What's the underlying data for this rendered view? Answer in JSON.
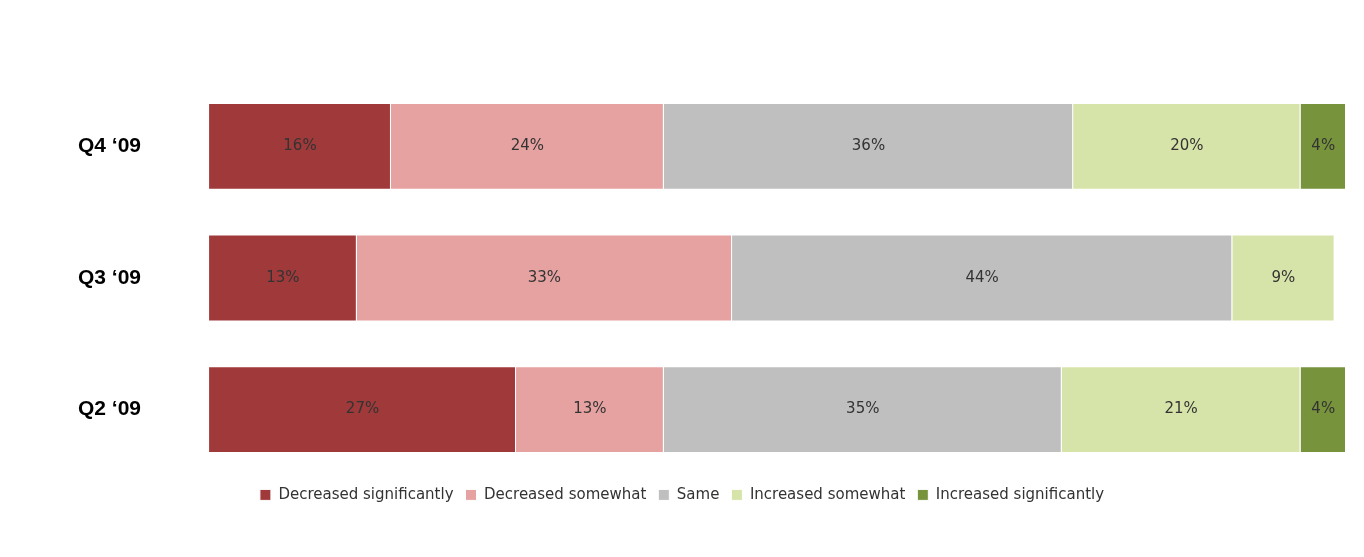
{
  "chart_data": {
    "type": "bar",
    "orientation": "horizontal",
    "stacked": true,
    "categories": [
      "Q4 ‘09",
      "Q3 ‘09",
      "Q2 ‘09"
    ],
    "tick_labels": "y",
    "grid": false,
    "legend": "bottom",
    "series": [
      {
        "name": "Decreased significantly",
        "color": "#a0393a",
        "values": [
          16,
          13,
          27
        ],
        "value_labels": [
          "16%",
          "13%",
          "27%"
        ]
      },
      {
        "name": "Decreased somewhat",
        "color": "#e6a1a1",
        "values": [
          24,
          33,
          13
        ],
        "value_labels": [
          "24%",
          "33%",
          "13%"
        ]
      },
      {
        "name": "Same",
        "color": "#bfbfbf",
        "values": [
          36,
          44,
          35
        ],
        "value_labels": [
          "36%",
          "44%",
          "35%"
        ]
      },
      {
        "name": "Increased somewhat",
        "color": "#d7e4a9",
        "values": [
          20,
          9,
          21
        ],
        "value_labels": [
          "20%",
          "9%",
          "21%"
        ]
      },
      {
        "name": "Increased significantly",
        "color": "#77933c",
        "values": [
          4,
          null,
          4
        ],
        "value_labels": [
          "4%",
          null,
          "4%"
        ]
      }
    ]
  }
}
